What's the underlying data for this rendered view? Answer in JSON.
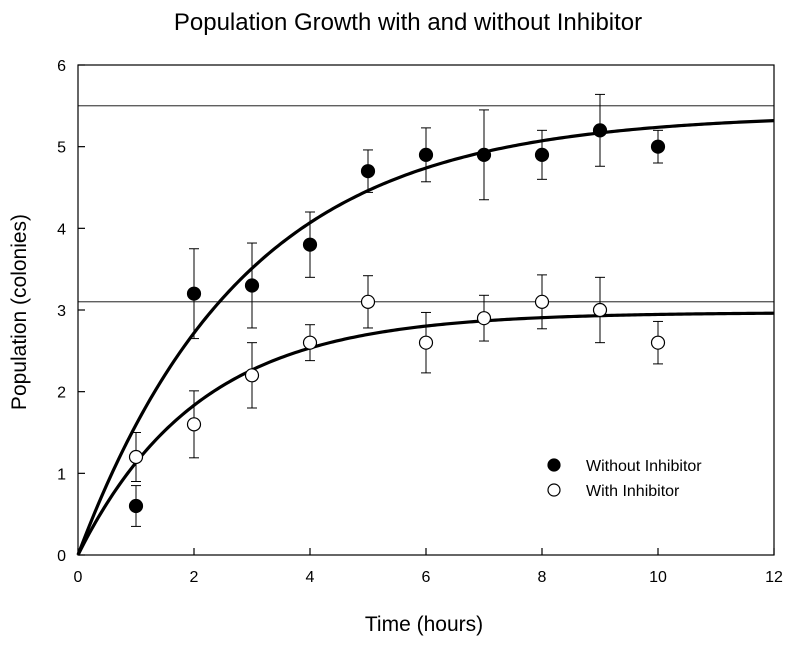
{
  "chart_data": {
    "type": "scatter",
    "title": "Population Growth with and without Inhibitor",
    "xlabel": "Time (hours)",
    "ylabel": "Population (colonies)",
    "xlim": [
      0,
      12
    ],
    "ylim": [
      0,
      6
    ],
    "xticks": [
      0,
      2,
      4,
      6,
      8,
      10,
      12
    ],
    "yticks": [
      0,
      1,
      2,
      3,
      4,
      5,
      6
    ],
    "grid": false,
    "legend_position": "bottom-right",
    "reference_lines": [
      5.5,
      3.1
    ],
    "series": [
      {
        "name": "Without Inhibitor",
        "marker": "filled-circle",
        "color": "#000000",
        "x": [
          1,
          2,
          3,
          4,
          5,
          6,
          7,
          8,
          9,
          10
        ],
        "y": [
          0.6,
          3.2,
          3.3,
          3.8,
          4.7,
          4.9,
          4.9,
          4.9,
          5.2,
          5.0
        ],
        "error": [
          0.25,
          0.55,
          0.52,
          0.4,
          0.26,
          0.33,
          0.55,
          0.3,
          0.44,
          0.2
        ],
        "fit": {
          "model": "exponential-rise",
          "asymptote": 5.4,
          "rate": 0.35
        }
      },
      {
        "name": "With Inhibitor",
        "marker": "open-circle",
        "color": "#000000",
        "x": [
          1,
          2,
          3,
          4,
          5,
          6,
          7,
          8,
          9,
          10
        ],
        "y": [
          1.2,
          1.6,
          2.2,
          2.6,
          3.1,
          2.6,
          2.9,
          3.1,
          3.0,
          2.6
        ],
        "error": [
          0.3,
          0.41,
          0.4,
          0.22,
          0.32,
          0.37,
          0.28,
          0.33,
          0.4,
          0.26
        ],
        "fit": {
          "model": "exponential-rise",
          "asymptote": 2.97,
          "rate": 0.48
        }
      }
    ]
  }
}
